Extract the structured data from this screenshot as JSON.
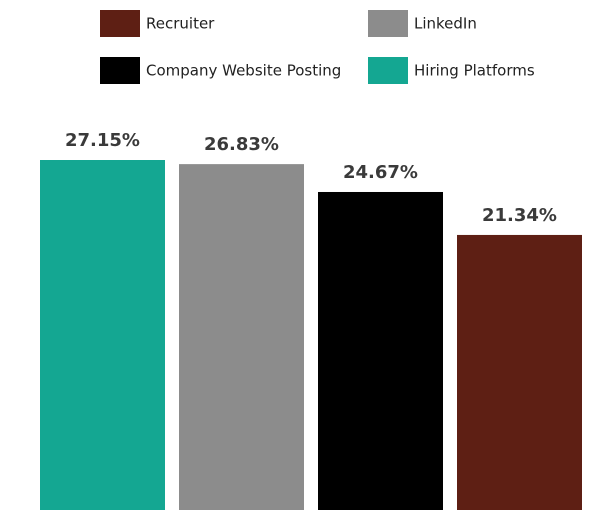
{
  "chart_data": {
    "type": "bar",
    "categories": [
      "Hiring Platforms",
      "LinkedIn",
      "Company Website Posting",
      "Recruiter"
    ],
    "values": [
      27.15,
      26.83,
      24.67,
      21.34
    ],
    "value_labels": [
      "27.15%",
      "26.83%",
      "24.67%",
      "21.34%"
    ],
    "unit": "%",
    "title": "",
    "xlabel": "",
    "ylabel": "",
    "grid": false,
    "legend_position": "top",
    "legend": [
      {
        "label": "Recruiter",
        "color": "#5e1f14"
      },
      {
        "label": "LinkedIn",
        "color": "#8c8c8c"
      },
      {
        "label": "Company Website Posting",
        "color": "#000000"
      },
      {
        "label": "Hiring Platforms",
        "color": "#14a792"
      }
    ],
    "bar_colors": [
      "#14a792",
      "#8c8c8c",
      "#000000",
      "#5e1f14"
    ]
  }
}
